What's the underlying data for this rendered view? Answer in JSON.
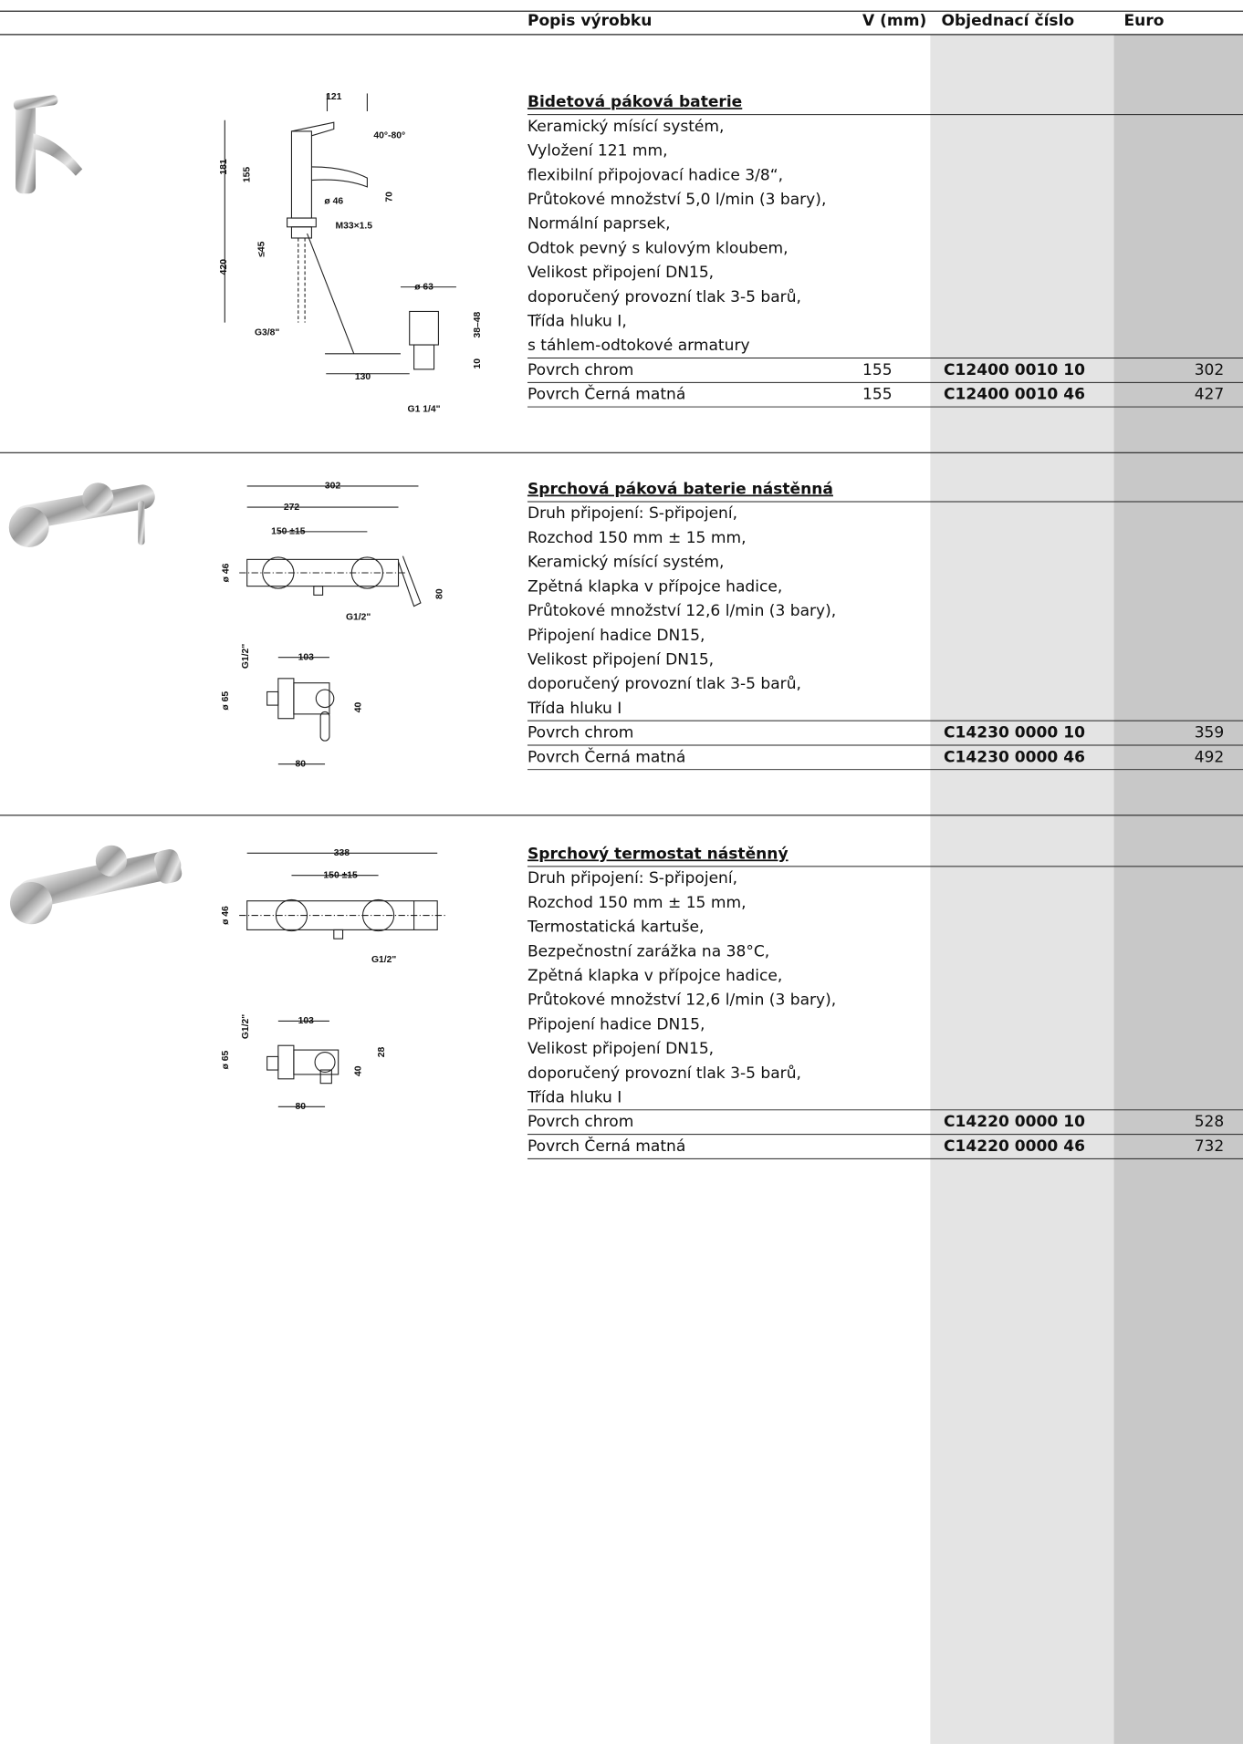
{
  "header": {
    "columns": [
      "Popis výrobku",
      "V (mm)",
      "Objednací číslo",
      "Euro"
    ]
  },
  "products": [
    {
      "title": "Bidetová páková baterie",
      "description": [
        "Keramický mísící systém,",
        "Vyložení 121 mm,",
        "flexibilní připojovací hadice 3/8“,",
        "Průtokové množství 5,0 l/min (3 bary),",
        "Normální paprsek,",
        "Odtok pevný s kulovým kloubem,",
        "Velikost připojení DN15,",
        "doporučený provozní tlak 3-5 barů,",
        "Třída hluku I,",
        "s táhlem-odtokové armatury"
      ],
      "variants": [
        {
          "surface": "Povrch chrom",
          "v": 155,
          "code": "C12400 0010 10",
          "price": 302
        },
        {
          "surface": "Povrch Černá matná",
          "v": 155,
          "code": "C12400 0010 46",
          "price": 427
        }
      ],
      "drawing_labels": [
        "121",
        "40°-80°",
        "181",
        "155",
        "ø 46",
        "70",
        "M33×1.5",
        "≤45",
        "420",
        "ø 63",
        "38–48",
        "G3/8\"",
        "10",
        "130",
        "G1 1/4\""
      ]
    },
    {
      "title": "Sprchová páková baterie nástěnná",
      "description": [
        "Druh připojení: S-připojení,",
        "Rozchod 150 mm ± 15 mm,",
        "Keramický mísící systém,",
        "Zpětná klapka v přípojce hadice,",
        "Průtokové množství 12,6 l/min (3 bary),",
        "Připojení hadice DN15,",
        "Velikost připojení DN15,",
        "doporučený provozní tlak 3-5 barů,",
        "Třída hluku I"
      ],
      "variants": [
        {
          "surface": "Povrch chrom",
          "code": "C14230 0000 10",
          "price": 359
        },
        {
          "surface": "Povrch Černá matná",
          "code": "C14230 0000 46",
          "price": 492
        }
      ],
      "drawing_labels": [
        "302",
        "272",
        "150 ±15",
        "ø 46",
        "80",
        "G1/2\"",
        "G1/2\"",
        "103",
        "ø 65",
        "40",
        "80"
      ]
    },
    {
      "title": "Sprchový termostat nástěnný",
      "description": [
        "Druh připojení: S-připojení,",
        "Rozchod 150 mm ± 15 mm,",
        "Termostatická kartuše,",
        "Bezpečnostní zarážka na 38°C,",
        "Zpětná klapka v přípojce hadice,",
        "Průtokové množství 12,6 l/min (3 bary),",
        "Připojení hadice DN15,",
        "Velikost připojení DN15,",
        "doporučený provozní tlak 3-5 barů,",
        "Třída hluku I"
      ],
      "variants": [
        {
          "surface": "Povrch chrom",
          "code": "C14220 0000 10",
          "price": 528
        },
        {
          "surface": "Povrch Černá matná",
          "code": "C14220 0000 46",
          "price": 732
        }
      ],
      "drawing_labels": [
        "338",
        "150 ±15",
        "ø 46",
        "G1/2\"",
        "G1/2\"",
        "103",
        "ø 65",
        "40",
        "28",
        "80"
      ]
    }
  ]
}
